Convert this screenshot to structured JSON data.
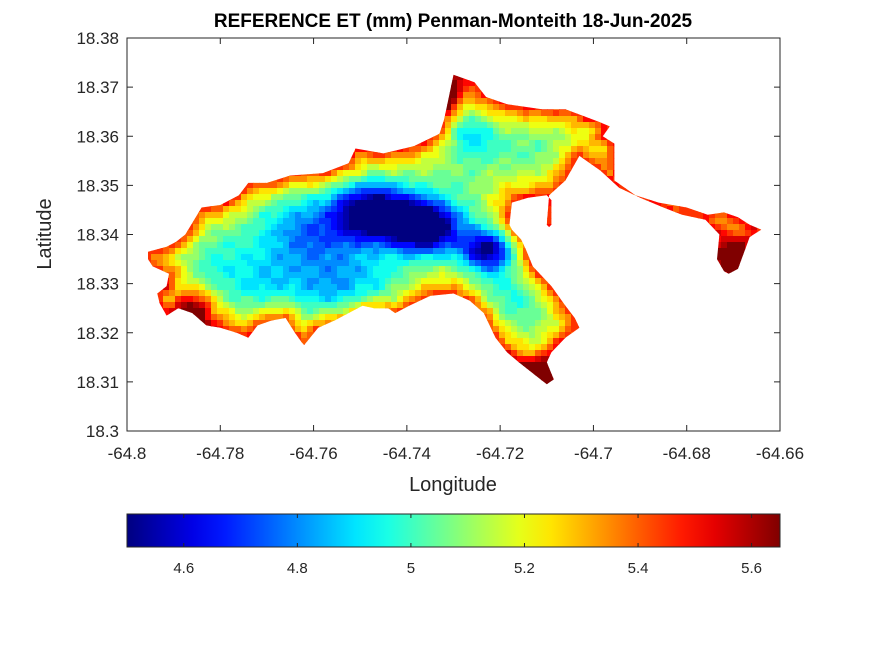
{
  "chart_data": {
    "type": "heatmap",
    "title": "REFERENCE ET (mm) Penman-Monteith 18-Jun-2025",
    "xlabel": "Longitude",
    "ylabel": "Latitude",
    "xlim": [
      -64.8,
      -64.66
    ],
    "ylim": [
      18.3,
      18.38
    ],
    "x_ticks": [
      -64.8,
      -64.78,
      -64.76,
      -64.74,
      -64.72,
      -64.7,
      -64.68,
      -64.66
    ],
    "x_tick_labels": [
      "-64.8",
      "-64.78",
      "-64.76",
      "-64.74",
      "-64.72",
      "-64.7",
      "-64.68",
      "-64.66"
    ],
    "y_ticks": [
      18.3,
      18.31,
      18.32,
      18.33,
      18.34,
      18.35,
      18.36,
      18.37,
      18.38
    ],
    "y_tick_labels": [
      "18.3",
      "18.31",
      "18.32",
      "18.33",
      "18.34",
      "18.35",
      "18.36",
      "18.37",
      "18.38"
    ],
    "grid": false,
    "colormap": "jet",
    "colorbar": {
      "placement": "bottom",
      "range": [
        4.5,
        5.65
      ],
      "ticks": [
        4.6,
        4.8,
        5.0,
        5.2,
        5.4,
        5.6
      ],
      "tick_labels": [
        "4.6",
        "4.8",
        "5",
        "5.2",
        "5.4",
        "5.6"
      ]
    },
    "field": {
      "min": 4.5,
      "max": 5.65,
      "island_outline": [
        [
          -64.7955,
          18.3365
        ],
        [
          -64.7915,
          18.3375
        ],
        [
          -64.7895,
          18.3385
        ],
        [
          -64.7875,
          18.34
        ],
        [
          -64.784,
          18.3455
        ],
        [
          -64.78,
          18.346
        ],
        [
          -64.776,
          18.348
        ],
        [
          -64.774,
          18.3505
        ],
        [
          -64.77,
          18.3505
        ],
        [
          -64.765,
          18.352
        ],
        [
          -64.758,
          18.3525
        ],
        [
          -64.7525,
          18.3545
        ],
        [
          -64.751,
          18.3575
        ],
        [
          -64.745,
          18.3565
        ],
        [
          -64.7385,
          18.358
        ],
        [
          -64.733,
          18.3605
        ],
        [
          -64.732,
          18.3635
        ],
        [
          -64.73,
          18.3725
        ],
        [
          -64.7255,
          18.371
        ],
        [
          -64.723,
          18.368
        ],
        [
          -64.7185,
          18.3665
        ],
        [
          -64.711,
          18.3655
        ],
        [
          -64.706,
          18.3655
        ],
        [
          -64.699,
          18.363
        ],
        [
          -64.6965,
          18.362
        ],
        [
          -64.698,
          18.36
        ],
        [
          -64.6955,
          18.3585
        ],
        [
          -64.6955,
          18.351
        ],
        [
          -64.691,
          18.348
        ],
        [
          -64.686,
          18.3465
        ],
        [
          -64.68,
          18.3455
        ],
        [
          -64.6755,
          18.344
        ],
        [
          -64.672,
          18.3445
        ],
        [
          -64.669,
          18.3435
        ],
        [
          -64.6665,
          18.342
        ],
        [
          -64.664,
          18.341
        ],
        [
          -64.6665,
          18.3395
        ],
        [
          -64.669,
          18.333
        ],
        [
          -64.671,
          18.332
        ],
        [
          -64.672,
          18.3325
        ],
        [
          -64.6735,
          18.335
        ],
        [
          -64.673,
          18.34
        ],
        [
          -64.676,
          18.343
        ],
        [
          -64.681,
          18.344
        ],
        [
          -64.685,
          18.3455
        ],
        [
          -64.69,
          18.3475
        ],
        [
          -64.6945,
          18.3495
        ],
        [
          -64.6985,
          18.353
        ],
        [
          -64.703,
          18.356
        ],
        [
          -64.706,
          18.351
        ],
        [
          -64.7095,
          18.348
        ],
        [
          -64.71,
          18.342
        ],
        [
          -64.7095,
          18.3415
        ],
        [
          -64.709,
          18.342
        ],
        [
          -64.709,
          18.347
        ],
        [
          -64.71,
          18.348
        ],
        [
          -64.714,
          18.3475
        ],
        [
          -64.7175,
          18.3465
        ],
        [
          -64.718,
          18.342
        ],
        [
          -64.7175,
          18.341
        ],
        [
          -64.7155,
          18.339
        ],
        [
          -64.7145,
          18.337
        ],
        [
          -64.713,
          18.3335
        ],
        [
          -64.709,
          18.3295
        ],
        [
          -64.706,
          18.3255
        ],
        [
          -64.704,
          18.323
        ],
        [
          -64.703,
          18.321
        ],
        [
          -64.706,
          18.319
        ],
        [
          -64.709,
          18.316
        ],
        [
          -64.71,
          18.314
        ],
        [
          -64.7085,
          18.3105
        ],
        [
          -64.71,
          18.3095
        ],
        [
          -64.712,
          18.311
        ],
        [
          -64.716,
          18.314
        ],
        [
          -64.7185,
          18.316
        ],
        [
          -64.721,
          18.319
        ],
        [
          -64.7235,
          18.324
        ],
        [
          -64.7265,
          18.3265
        ],
        [
          -64.73,
          18.328
        ],
        [
          -64.735,
          18.3275
        ],
        [
          -64.7395,
          18.3255
        ],
        [
          -64.7425,
          18.324
        ],
        [
          -64.744,
          18.325
        ],
        [
          -64.747,
          18.325
        ],
        [
          -64.7495,
          18.3255
        ],
        [
          -64.7525,
          18.324
        ],
        [
          -64.7555,
          18.3225
        ],
        [
          -64.759,
          18.321
        ],
        [
          -64.762,
          18.3175
        ],
        [
          -64.7625,
          18.318
        ],
        [
          -64.764,
          18.32
        ],
        [
          -64.766,
          18.323
        ],
        [
          -64.769,
          18.3225
        ],
        [
          -64.772,
          18.3215
        ],
        [
          -64.774,
          18.319
        ],
        [
          -64.7765,
          18.32
        ],
        [
          -64.78,
          18.321
        ],
        [
          -64.783,
          18.3215
        ],
        [
          -64.786,
          18.324
        ],
        [
          -64.789,
          18.325
        ],
        [
          -64.7915,
          18.3235
        ],
        [
          -64.793,
          18.326
        ],
        [
          -64.7935,
          18.328
        ],
        [
          -64.7915,
          18.3295
        ],
        [
          -64.791,
          18.332
        ],
        [
          -64.7945,
          18.3335
        ],
        [
          -64.7955,
          18.335
        ]
      ],
      "hotspots": [
        {
          "lon": -64.747,
          "lat": 18.3445,
          "amp": -0.7,
          "sx": 0.006,
          "sy": 0.004
        },
        {
          "lon": -64.736,
          "lat": 18.3415,
          "amp": -0.78,
          "sx": 0.005,
          "sy": 0.0035
        },
        {
          "lon": -64.7225,
          "lat": 18.337,
          "amp": -0.6,
          "sx": 0.004,
          "sy": 0.003
        },
        {
          "lon": -64.761,
          "lat": 18.34,
          "amp": -0.28,
          "sx": 0.008,
          "sy": 0.006
        },
        {
          "lon": -64.752,
          "lat": 18.328,
          "amp": -0.28,
          "sx": 0.007,
          "sy": 0.005
        },
        {
          "lon": -64.77,
          "lat": 18.329,
          "amp": -0.16,
          "sx": 0.006,
          "sy": 0.004
        },
        {
          "lon": -64.782,
          "lat": 18.335,
          "amp": -0.1,
          "sx": 0.005,
          "sy": 0.005
        },
        {
          "lon": -64.719,
          "lat": 18.327,
          "amp": -0.15,
          "sx": 0.006,
          "sy": 0.004
        },
        {
          "lon": -64.727,
          "lat": 18.36,
          "amp": -0.22,
          "sx": 0.004,
          "sy": 0.003
        },
        {
          "lon": -64.714,
          "lat": 18.358,
          "amp": -0.05,
          "sx": 0.005,
          "sy": 0.003
        },
        {
          "lon": -64.732,
          "lat": 18.369,
          "amp": 0.45,
          "sx": 0.003,
          "sy": 0.0025
        },
        {
          "lon": -64.785,
          "lat": 18.325,
          "amp": 0.35,
          "sx": 0.003,
          "sy": 0.003
        },
        {
          "lon": -64.712,
          "lat": 18.312,
          "amp": 0.55,
          "sx": 0.003,
          "sy": 0.002
        },
        {
          "lon": -64.67,
          "lat": 18.336,
          "amp": 0.5,
          "sx": 0.002,
          "sy": 0.003
        }
      ]
    }
  }
}
